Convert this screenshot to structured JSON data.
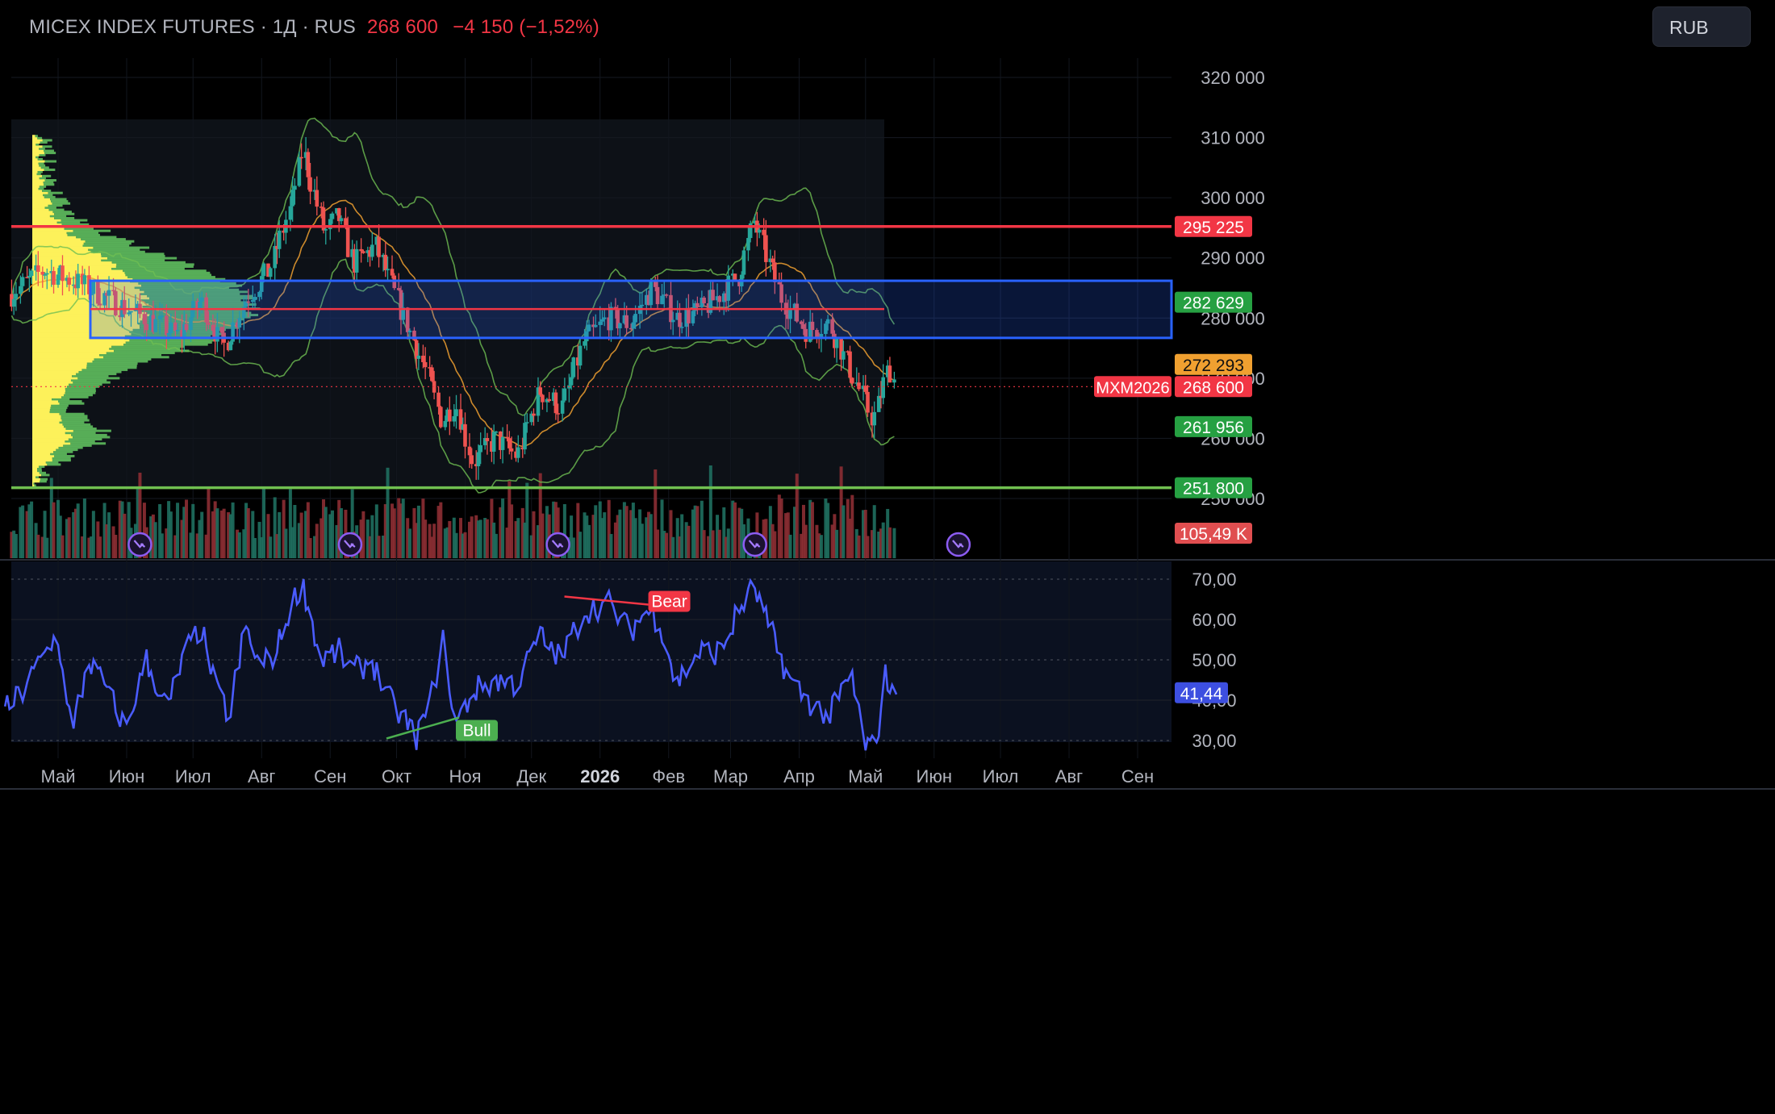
{
  "header": {
    "symbol": "MICEX INDEX FUTURES · 1Д · RUS",
    "last_price": "268 600",
    "change": "−4 150 (−1,52%)"
  },
  "currency_button": "RUB",
  "colors": {
    "up": "#26a69a",
    "down": "#ef5350",
    "rsi": "#4a5cff",
    "band": "#6fbf53",
    "ma": "#f0a030",
    "resistance": "#f23645",
    "support": "#70c050",
    "value_area": "#2962ff"
  },
  "chart_data": [
    {
      "type": "candlestick",
      "series": [
        {
          "name": "MXM2026",
          "approx_close_path": [
            [
              "2025-04-10",
              284000
            ],
            [
              "2025-04-25",
              288000
            ],
            [
              "2025-05-10",
              286000
            ],
            [
              "2025-05-25",
              283000
            ],
            [
              "2025-06-10",
              280000
            ],
            [
              "2025-06-25",
              277000
            ],
            [
              "2025-07-05",
              283000
            ],
            [
              "2025-07-15",
              275000
            ],
            [
              "2025-07-25",
              283000
            ],
            [
              "2025-08-05",
              288000
            ],
            [
              "2025-08-15",
              299000
            ],
            [
              "2025-08-20",
              308000
            ],
            [
              "2025-08-30",
              294000
            ],
            [
              "2025-09-05",
              297000
            ],
            [
              "2025-09-12",
              289000
            ],
            [
              "2025-09-22",
              292000
            ],
            [
              "2025-10-05",
              280000
            ],
            [
              "2025-10-15",
              271000
            ],
            [
              "2025-10-22",
              263000
            ],
            [
              "2025-10-28",
              266000
            ],
            [
              "2025-11-05",
              256000
            ],
            [
              "2025-11-15",
              260000
            ],
            [
              "2025-11-25",
              257000
            ],
            [
              "2025-12-05",
              268000
            ],
            [
              "2025-12-15",
              265000
            ],
            [
              "2025-12-25",
              276000
            ],
            [
              "2026-01-05",
              280000
            ],
            [
              "2026-01-15",
              279000
            ],
            [
              "2026-01-25",
              285000
            ],
            [
              "2026-02-05",
              280000
            ],
            [
              "2026-02-15",
              281000
            ],
            [
              "2026-02-25",
              284000
            ],
            [
              "2026-03-05",
              287000
            ],
            [
              "2026-03-12",
              296000
            ],
            [
              "2026-03-18",
              290000
            ],
            [
              "2026-03-25",
              283000
            ],
            [
              "2026-04-05",
              278000
            ],
            [
              "2026-04-15",
              279000
            ],
            [
              "2026-04-25",
              271000
            ],
            [
              "2026-05-05",
              263000
            ],
            [
              "2026-05-12",
              272000
            ],
            [
              "2026-05-15",
              268600
            ]
          ]
        }
      ],
      "y_axis": {
        "ticks": [
          "320 000",
          "310 000",
          "300 000",
          "290 000",
          "280 000",
          "270 000",
          "260 000",
          "250 000"
        ],
        "range": [
          248000,
          323000
        ]
      },
      "x_axis": {
        "ticks": [
          "Май",
          "Июн",
          "Июл",
          "Авг",
          "Сен",
          "Окт",
          "Ноя",
          "Дек",
          "2026",
          "Фев",
          "Мар",
          "Апр",
          "Май",
          "Июн",
          "Июл",
          "Авг",
          "Сен"
        ],
        "range": [
          "2025-04-07",
          "2026-09-25"
        ]
      },
      "price_labels": [
        {
          "value": 295225,
          "text": "295 225",
          "color": "#f23645"
        },
        {
          "value": 282629,
          "text": "282 629",
          "color": "#26a042"
        },
        {
          "value": 272293,
          "text": "272 293",
          "color": "#f0a030"
        },
        {
          "value": 268600,
          "text": "268 600",
          "color": "#f23645"
        },
        {
          "value": 261956,
          "text": "261 956",
          "color": "#26a042"
        },
        {
          "value": 251800,
          "text": "251 800",
          "color": "#26a042"
        }
      ],
      "symbol_tag": "MXM2026",
      "volume_tag": "105,49 K",
      "horizontal_lines": [
        {
          "value": 295225,
          "color": "#f23645"
        },
        {
          "value": 251800,
          "color": "#70c050"
        },
        {
          "value": 281500,
          "color": "#f23645"
        }
      ],
      "value_area": {
        "from": 276700,
        "to": 286200
      },
      "volume_profile": true,
      "bollinger_bands": true,
      "moving_average": true,
      "event_markers": [
        "2025-06-07",
        "2025-09-10",
        "2025-12-13",
        "2026-03-12",
        "2026-06-12"
      ],
      "grid": true
    },
    {
      "type": "line",
      "series": [
        {
          "values": [
            [
              "2025-04-07",
              37
            ],
            [
              "2025-04-15",
              42
            ],
            [
              "2025-04-25",
              51
            ],
            [
              "2025-05-01",
              56
            ],
            [
              "2025-05-08",
              32
            ],
            [
              "2025-05-15",
              50
            ],
            [
              "2025-05-22",
              44
            ],
            [
              "2025-06-01",
              33
            ],
            [
              "2025-06-10",
              50
            ],
            [
              "2025-06-20",
              38
            ],
            [
              "2025-06-28",
              52
            ],
            [
              "2025-07-05",
              58
            ],
            [
              "2025-07-12",
              42
            ],
            [
              "2025-07-18",
              36
            ],
            [
              "2025-07-25",
              58
            ],
            [
              "2025-08-01",
              48
            ],
            [
              "2025-08-08",
              52
            ],
            [
              "2025-08-15",
              64
            ],
            [
              "2025-08-20",
              69
            ],
            [
              "2025-08-28",
              50
            ],
            [
              "2025-09-05",
              52
            ],
            [
              "2025-09-12",
              47
            ],
            [
              "2025-09-20",
              50
            ],
            [
              "2025-09-28",
              40
            ],
            [
              "2025-10-05",
              35
            ],
            [
              "2025-10-10",
              31
            ],
            [
              "2025-10-16",
              38
            ],
            [
              "2025-10-22",
              55
            ],
            [
              "2025-10-28",
              34
            ],
            [
              "2025-11-05",
              42
            ],
            [
              "2025-11-15",
              45
            ],
            [
              "2025-11-25",
              44
            ],
            [
              "2025-12-05",
              56
            ],
            [
              "2025-12-15",
              50
            ],
            [
              "2025-12-25",
              62
            ],
            [
              "2026-01-05",
              64
            ],
            [
              "2026-01-15",
              57
            ],
            [
              "2026-01-22",
              62
            ],
            [
              "2026-01-28",
              60
            ],
            [
              "2026-02-05",
              44
            ],
            [
              "2026-02-15",
              52
            ],
            [
              "2026-02-25",
              52
            ],
            [
              "2026-03-05",
              62
            ],
            [
              "2026-03-12",
              68
            ],
            [
              "2026-03-20",
              56
            ],
            [
              "2026-03-28",
              45
            ],
            [
              "2026-04-05",
              40
            ],
            [
              "2026-04-15",
              36
            ],
            [
              "2026-04-25",
              46
            ],
            [
              "2026-05-01",
              29
            ],
            [
              "2026-05-06",
              28
            ],
            [
              "2026-05-10",
              46
            ],
            [
              "2026-05-15",
              41.44
            ]
          ]
        }
      ],
      "y_axis": {
        "ticks": [
          "70,00",
          "60,00",
          "50,00",
          "40,00",
          "30,00"
        ],
        "range": [
          27,
          71
        ]
      },
      "current_value": "41,44",
      "annotations": [
        {
          "text": "Bear",
          "date": "2026-01-25",
          "value": 64.5,
          "color": "#f23645"
        },
        {
          "text": "Bull",
          "date": "2025-10-30",
          "value": 32.5,
          "color": "#4caf50"
        }
      ]
    }
  ]
}
